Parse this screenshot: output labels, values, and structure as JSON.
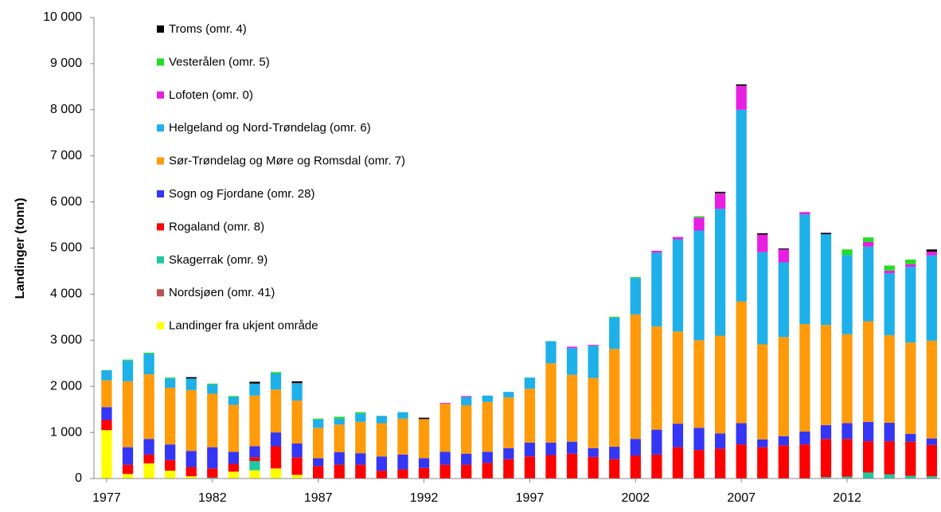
{
  "chart_data": {
    "type": "stacked-bar",
    "y_label": "Landinger (tonn)",
    "x": [
      1977,
      1978,
      1979,
      1980,
      1981,
      1982,
      1983,
      1984,
      1985,
      1986,
      1987,
      1988,
      1989,
      1990,
      1991,
      1992,
      1993,
      1994,
      1995,
      1996,
      1997,
      1998,
      1999,
      2000,
      2001,
      2002,
      2003,
      2004,
      2005,
      2006,
      2007,
      2008,
      2009,
      2010,
      2011,
      2012,
      2013,
      2014,
      2015,
      2016
    ],
    "xlim": [
      1976.4,
      2016.4
    ],
    "xticks": [
      1977,
      1982,
      1987,
      1992,
      1997,
      2002,
      2007,
      2012
    ],
    "ylim": [
      0,
      10000
    ],
    "yticks": [
      0,
      {
        "value": 1000,
        "label": "1 000"
      },
      {
        "value": 2000,
        "label": "2 000"
      },
      {
        "value": 3000,
        "label": "3 000"
      },
      {
        "value": 4000,
        "label": "4 000"
      },
      {
        "value": 5000,
        "label": "5 000"
      },
      {
        "value": 6000,
        "label": "6 000"
      },
      {
        "value": 7000,
        "label": "7 000"
      },
      {
        "value": 8000,
        "label": "8 000"
      },
      {
        "value": 9000,
        "label": "9 000"
      },
      {
        "value": 10000,
        "label": "10 000"
      }
    ],
    "legend": "upper left",
    "series": [
      {
        "name": "Landinger fra ukjent område",
        "color": "#ffff00",
        "values": [
          1050,
          100,
          330,
          170,
          50,
          0,
          150,
          180,
          220,
          80,
          0,
          0,
          0,
          0,
          0,
          0,
          0,
          0,
          0,
          0,
          0,
          0,
          0,
          0,
          0,
          0,
          0,
          0,
          0,
          0,
          0,
          0,
          0,
          0,
          0,
          0,
          0,
          0,
          0,
          0
        ]
      },
      {
        "name": "Nordsjøen (omr. 41)",
        "color": "#b85450",
        "values": [
          0,
          0,
          0,
          0,
          0,
          0,
          0,
          0,
          0,
          0,
          0,
          0,
          0,
          0,
          0,
          0,
          0,
          0,
          0,
          0,
          0,
          0,
          0,
          0,
          0,
          0,
          0,
          0,
          0,
          0,
          0,
          0,
          0,
          0,
          0,
          0,
          0,
          0,
          0,
          0
        ]
      },
      {
        "name": "Skagerrak (omr. 9)",
        "color": "#1fc8a0",
        "values": [
          0,
          0,
          0,
          0,
          0,
          20,
          0,
          200,
          0,
          0,
          0,
          0,
          0,
          0,
          0,
          0,
          0,
          0,
          0,
          0,
          0,
          0,
          0,
          0,
          0,
          0,
          0,
          0,
          0,
          0,
          0,
          0,
          0,
          0,
          30,
          40,
          130,
          90,
          60,
          50
        ]
      },
      {
        "name": "Rogaland (omr. 8)",
        "color": "#ff0000",
        "values": [
          220,
          200,
          190,
          230,
          200,
          200,
          170,
          80,
          480,
          380,
          270,
          300,
          300,
          170,
          200,
          230,
          300,
          300,
          340,
          420,
          480,
          510,
          540,
          470,
          420,
          500,
          520,
          680,
          620,
          650,
          740,
          680,
          720,
          740,
          830,
          820,
          680,
          720,
          740,
          680
        ]
      },
      {
        "name": "Sogn og Fjordane (omr. 28)",
        "color": "#3535f5",
        "values": [
          280,
          380,
          340,
          340,
          350,
          460,
          260,
          240,
          300,
          300,
          170,
          270,
          250,
          310,
          320,
          210,
          280,
          240,
          240,
          240,
          300,
          270,
          260,
          190,
          270,
          360,
          540,
          510,
          480,
          330,
          460,
          170,
          200,
          280,
          300,
          340,
          420,
          400,
          170,
          140
        ]
      },
      {
        "name": "Sør-Trøndelag og Møre og Romsdal (omr. 7)",
        "color": "#ff9a0a",
        "values": [
          580,
          1430,
          1400,
          1230,
          1320,
          1160,
          1020,
          1100,
          930,
          930,
          660,
          600,
          680,
          720,
          780,
          850,
          1040,
          1050,
          1080,
          1100,
          1170,
          1720,
          1450,
          1520,
          2120,
          2700,
          2240,
          2000,
          1900,
          2120,
          2640,
          2060,
          2150,
          2330,
          2170,
          1930,
          2180,
          1900,
          1980,
          2120
        ]
      },
      {
        "name": "Helgeland og Nord-Trøndelag (omr. 6)",
        "color": "#1eb0e8",
        "values": [
          220,
          450,
          450,
          200,
          250,
          200,
          170,
          260,
          350,
          380,
          180,
          130,
          180,
          160,
          140,
          0,
          0,
          180,
          140,
          120,
          240,
          480,
          580,
          700,
          680,
          790,
          1600,
          2000,
          2380,
          2750,
          4160,
          2000,
          1620,
          2380,
          1970,
          1720,
          1620,
          1340,
          1640,
          1850
        ]
      },
      {
        "name": "Lofoten (omr. 0)",
        "color": "#e81ee0",
        "values": [
          0,
          0,
          0,
          0,
          0,
          0,
          0,
          0,
          0,
          0,
          0,
          0,
          0,
          0,
          0,
          0,
          20,
          20,
          0,
          0,
          0,
          0,
          30,
          20,
          0,
          0,
          40,
          50,
          280,
          340,
          520,
          380,
          280,
          50,
          0,
          0,
          100,
          60,
          60,
          80
        ]
      },
      {
        "name": "Vesterålen (omr. 5)",
        "color": "#22dd22",
        "values": [
          0,
          20,
          20,
          20,
          0,
          20,
          20,
          0,
          30,
          0,
          20,
          40,
          30,
          0,
          0,
          0,
          0,
          0,
          0,
          0,
          0,
          0,
          0,
          0,
          20,
          20,
          0,
          0,
          30,
          0,
          0,
          0,
          0,
          0,
          0,
          120,
          100,
          110,
          100,
          0
        ]
      },
      {
        "name": "Troms (omr. 4)",
        "color": "#000000",
        "values": [
          0,
          0,
          0,
          0,
          30,
          0,
          0,
          40,
          0,
          40,
          0,
          0,
          0,
          0,
          0,
          30,
          0,
          0,
          0,
          0,
          0,
          0,
          0,
          0,
          0,
          0,
          0,
          0,
          0,
          30,
          30,
          30,
          20,
          0,
          30,
          0,
          0,
          0,
          0,
          50
        ]
      }
    ]
  }
}
